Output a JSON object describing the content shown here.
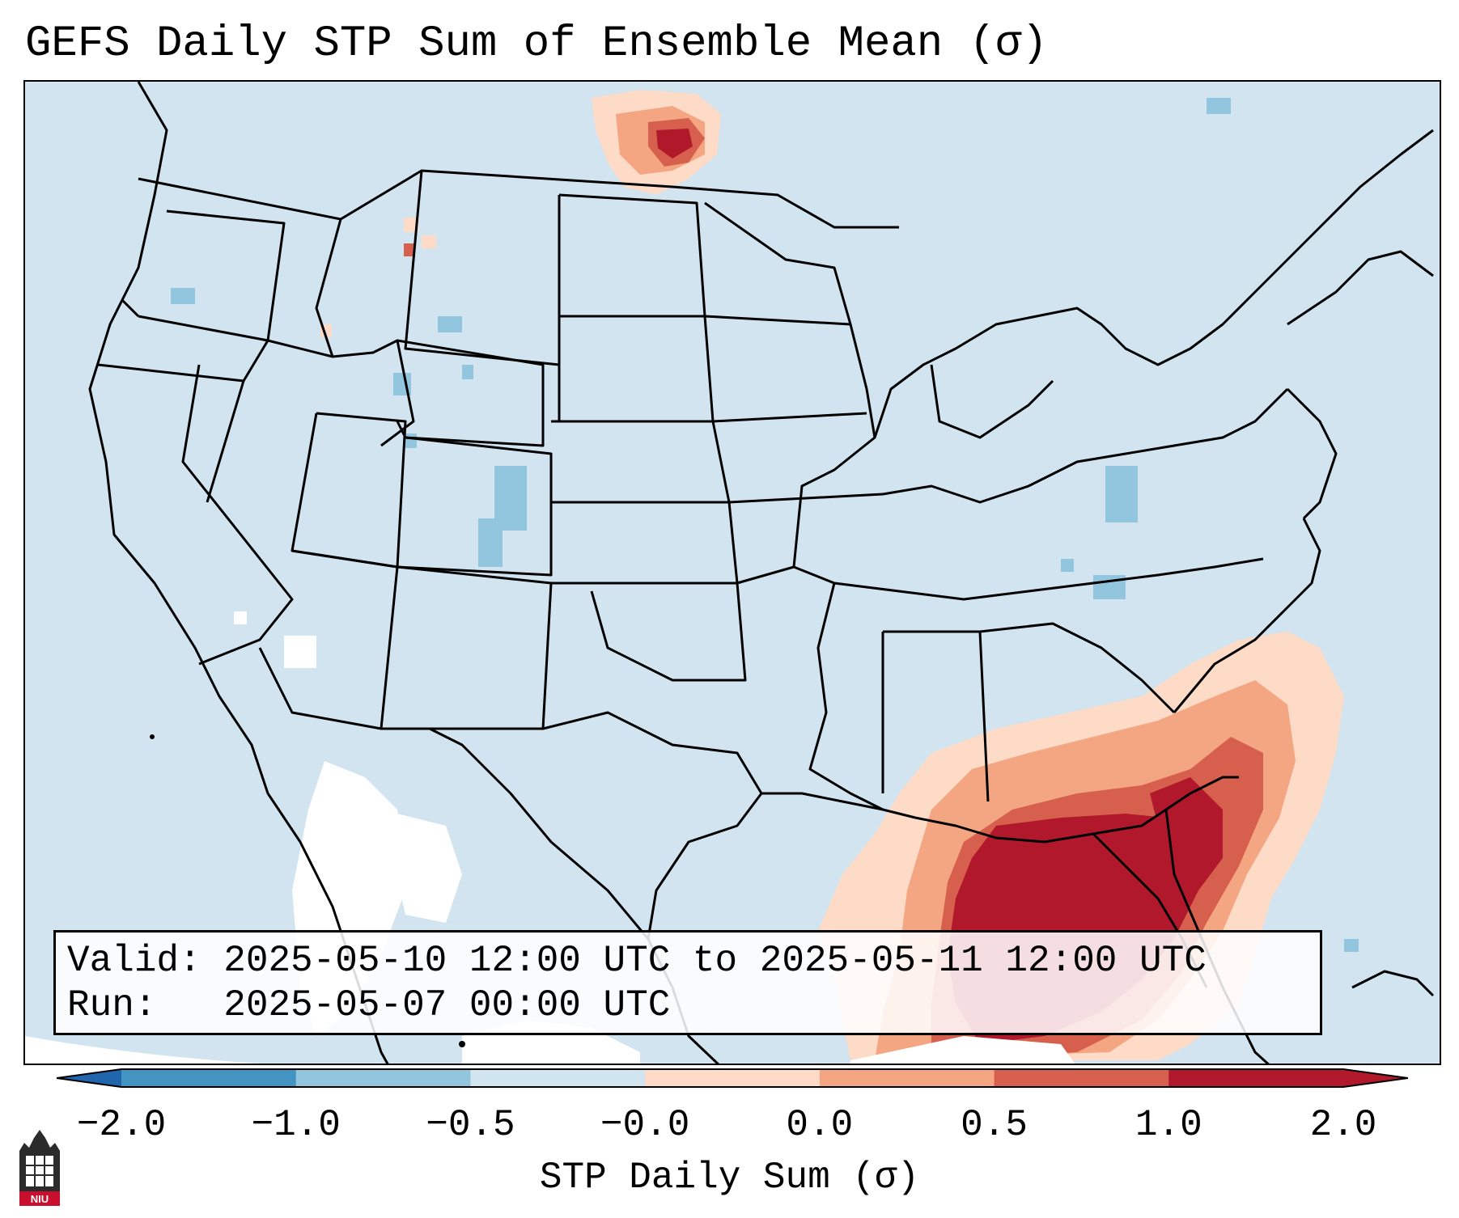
{
  "title": "GEFS Daily STP Sum of Ensemble Mean (σ)",
  "info": {
    "valid_line": "Valid: 2025-05-10 12:00 UTC to 2025-05-11 12:00 UTC",
    "run_line": "Run:   2025-05-07 00:00 UTC"
  },
  "colorbar": {
    "title": "STP Daily Sum (σ)",
    "tick_labels": [
      "−2.0",
      "−1.0",
      "−0.5",
      "−0.0",
      "0.0",
      "0.5",
      "1.0",
      "2.0"
    ],
    "colors": [
      "#4393c3",
      "#92c5de",
      "#d1e5f0",
      "#ffffff",
      "#fddbc7",
      "#f4a582",
      "#d6604d",
      "#b2182b"
    ],
    "extend": "both"
  },
  "legend_colors": {
    "ocean_land_background": "#d1e4ef",
    "neg_strong": "#4393c3",
    "neg_moderate": "#92c5de",
    "neutral": "#ffffff",
    "pos_light": "#fddbc7",
    "pos_moderate": "#f4a582",
    "pos_strong": "#d6604d",
    "pos_extreme": "#b2182b"
  },
  "logo": {
    "text": "NIU",
    "name": "Northern Illinois University"
  }
}
